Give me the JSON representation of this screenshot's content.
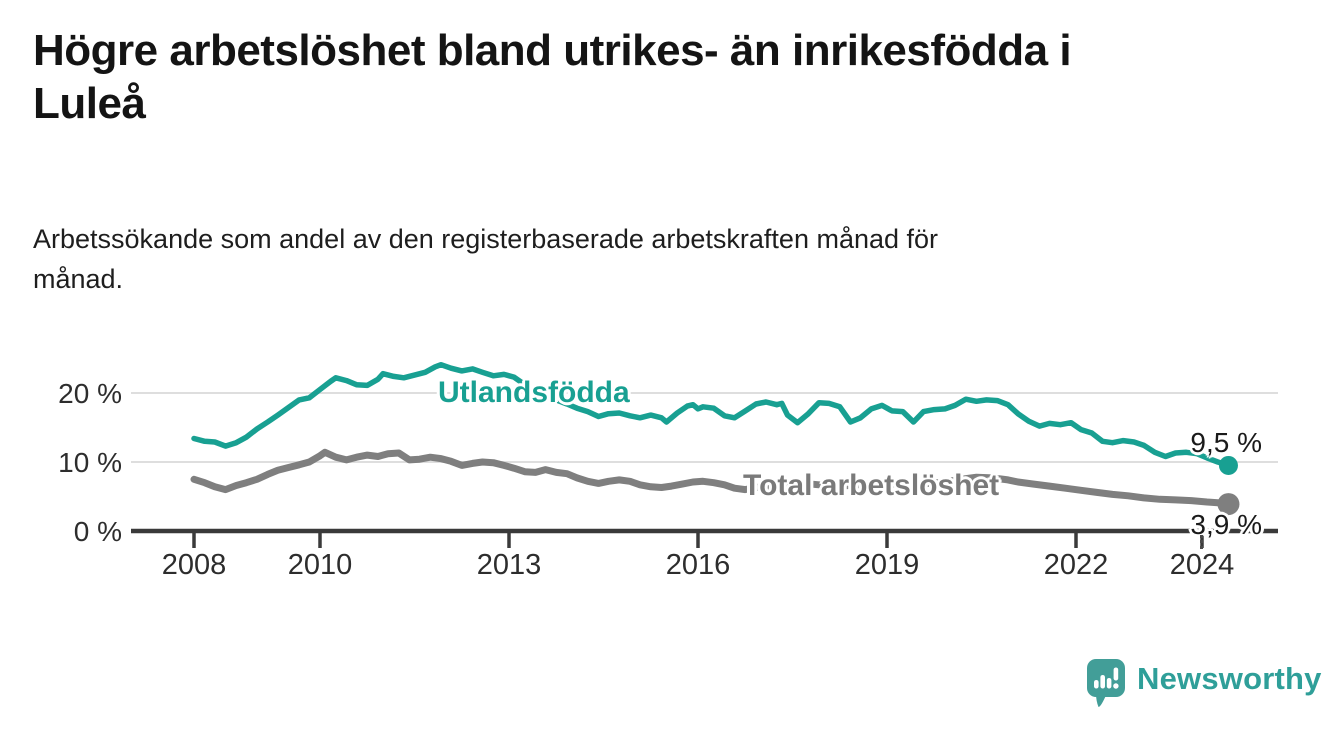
{
  "header": {
    "title": "Högre arbetslöshet bland utrikes- än inrikesfödda i Luleå",
    "title_lines": [
      "Högre arbetslöshet bland utrikes- än inrikesfödda i",
      "Luleå"
    ],
    "subtitle": "Arbetssökande som andel av den registerbaserade arbetskraften månad för månad.",
    "subtitle_lines": [
      "Arbetssökande som andel av den registerbaserade arbetskraften månad för",
      "månad."
    ]
  },
  "footer": {
    "brand": "Newsworthy",
    "brand_color": "#2f9f99"
  },
  "chart_data": {
    "type": "line",
    "title": "Högre arbetslöshet bland utrikes- än inrikesfödda i Luleå",
    "subtitle": "Arbetssökande som andel av den registerbaserade arbetskraften månad för månad.",
    "xlabel": "",
    "ylabel": "",
    "x_range": [
      2007.9,
      2025.2
    ],
    "ylim": [
      0,
      25
    ],
    "grid": "horizontal",
    "legend_position": "inline-labels",
    "x_ticks": [
      {
        "value": 2008,
        "label": "2008"
      },
      {
        "value": 2010,
        "label": "2010"
      },
      {
        "value": 2013,
        "label": "2013"
      },
      {
        "value": 2016,
        "label": "2016"
      },
      {
        "value": 2019,
        "label": "2019"
      },
      {
        "value": 2022,
        "label": "2022"
      },
      {
        "value": 2024,
        "label": "2024"
      }
    ],
    "y_ticks": [
      {
        "value": 0,
        "label": "0 %"
      },
      {
        "value": 10,
        "label": "10 %"
      },
      {
        "value": 20,
        "label": "20 %"
      }
    ],
    "axis_color": "#3a3a3a",
    "gridline_color": "#dedede",
    "tick_label_color": "#2d2d2d",
    "series": [
      {
        "label": "Utlandsfödda",
        "color": "#18a092",
        "stroke_width": 5.5,
        "dot_r": 9.5,
        "end_label": "9,5 %",
        "end_value": 9.5,
        "points": [
          [
            2008.0,
            13.4
          ],
          [
            2008.17,
            13.0
          ],
          [
            2008.33,
            12.9
          ],
          [
            2008.5,
            12.3
          ],
          [
            2008.67,
            12.8
          ],
          [
            2008.83,
            13.6
          ],
          [
            2009.0,
            14.8
          ],
          [
            2009.17,
            15.8
          ],
          [
            2009.33,
            16.8
          ],
          [
            2009.5,
            17.9
          ],
          [
            2009.67,
            19.0
          ],
          [
            2009.83,
            19.3
          ],
          [
            2010.0,
            20.5
          ],
          [
            2010.17,
            21.7
          ],
          [
            2010.25,
            22.2
          ],
          [
            2010.42,
            21.8
          ],
          [
            2010.58,
            21.2
          ],
          [
            2010.75,
            21.1
          ],
          [
            2010.92,
            22.0
          ],
          [
            2011.0,
            22.8
          ],
          [
            2011.17,
            22.4
          ],
          [
            2011.33,
            22.2
          ],
          [
            2011.5,
            22.6
          ],
          [
            2011.67,
            23.0
          ],
          [
            2011.83,
            23.8
          ],
          [
            2011.92,
            24.1
          ],
          [
            2012.08,
            23.6
          ],
          [
            2012.25,
            23.2
          ],
          [
            2012.42,
            23.5
          ],
          [
            2012.58,
            23.0
          ],
          [
            2012.75,
            22.5
          ],
          [
            2012.92,
            22.7
          ],
          [
            2013.08,
            22.3
          ],
          [
            2013.25,
            21.2
          ],
          [
            2013.42,
            20.2
          ],
          [
            2013.58,
            19.4
          ],
          [
            2013.75,
            19.0
          ],
          [
            2013.92,
            18.4
          ],
          [
            2014.08,
            17.8
          ],
          [
            2014.25,
            17.3
          ],
          [
            2014.42,
            16.6
          ],
          [
            2014.58,
            17.0
          ],
          [
            2014.75,
            17.1
          ],
          [
            2014.92,
            16.7
          ],
          [
            2015.08,
            16.4
          ],
          [
            2015.25,
            16.8
          ],
          [
            2015.42,
            16.4
          ],
          [
            2015.5,
            15.8
          ],
          [
            2015.67,
            17.1
          ],
          [
            2015.83,
            18.1
          ],
          [
            2015.92,
            18.3
          ],
          [
            2016.0,
            17.7
          ],
          [
            2016.08,
            18.0
          ],
          [
            2016.25,
            17.8
          ],
          [
            2016.42,
            16.7
          ],
          [
            2016.58,
            16.4
          ],
          [
            2016.75,
            17.4
          ],
          [
            2016.92,
            18.4
          ],
          [
            2017.08,
            18.7
          ],
          [
            2017.25,
            18.3
          ],
          [
            2017.33,
            18.5
          ],
          [
            2017.42,
            16.8
          ],
          [
            2017.58,
            15.7
          ],
          [
            2017.75,
            17.0
          ],
          [
            2017.92,
            18.6
          ],
          [
            2018.08,
            18.5
          ],
          [
            2018.25,
            18.0
          ],
          [
            2018.42,
            15.8
          ],
          [
            2018.58,
            16.4
          ],
          [
            2018.75,
            17.7
          ],
          [
            2018.92,
            18.2
          ],
          [
            2019.08,
            17.4
          ],
          [
            2019.25,
            17.3
          ],
          [
            2019.42,
            15.8
          ],
          [
            2019.58,
            17.3
          ],
          [
            2019.75,
            17.6
          ],
          [
            2019.92,
            17.7
          ],
          [
            2020.08,
            18.2
          ],
          [
            2020.25,
            19.1
          ],
          [
            2020.42,
            18.8
          ],
          [
            2020.58,
            19.0
          ],
          [
            2020.75,
            18.9
          ],
          [
            2020.92,
            18.3
          ],
          [
            2021.08,
            17.0
          ],
          [
            2021.25,
            15.9
          ],
          [
            2021.42,
            15.2
          ],
          [
            2021.58,
            15.6
          ],
          [
            2021.75,
            15.4
          ],
          [
            2021.92,
            15.7
          ],
          [
            2022.08,
            14.7
          ],
          [
            2022.25,
            14.2
          ],
          [
            2022.42,
            13.0
          ],
          [
            2022.58,
            12.8
          ],
          [
            2022.75,
            13.1
          ],
          [
            2022.92,
            12.9
          ],
          [
            2023.08,
            12.4
          ],
          [
            2023.25,
            11.4
          ],
          [
            2023.42,
            10.8
          ],
          [
            2023.58,
            11.3
          ],
          [
            2023.75,
            11.4
          ],
          [
            2023.92,
            11.2
          ],
          [
            2024.08,
            10.6
          ],
          [
            2024.25,
            10.0
          ],
          [
            2024.42,
            9.5
          ]
        ]
      },
      {
        "label": "Total arbetslöshet",
        "color": "#7f7f7f",
        "stroke_width": 7,
        "dot_r": 11,
        "end_label": "3,9 %",
        "end_value": 3.9,
        "points": [
          [
            2008.0,
            7.5
          ],
          [
            2008.17,
            7.0
          ],
          [
            2008.33,
            6.4
          ],
          [
            2008.5,
            6.0
          ],
          [
            2008.67,
            6.6
          ],
          [
            2008.83,
            7.0
          ],
          [
            2009.0,
            7.5
          ],
          [
            2009.17,
            8.2
          ],
          [
            2009.33,
            8.8
          ],
          [
            2009.5,
            9.2
          ],
          [
            2009.67,
            9.6
          ],
          [
            2009.83,
            10.0
          ],
          [
            2010.0,
            10.9
          ],
          [
            2010.08,
            11.4
          ],
          [
            2010.25,
            10.7
          ],
          [
            2010.42,
            10.3
          ],
          [
            2010.58,
            10.7
          ],
          [
            2010.75,
            11.0
          ],
          [
            2010.92,
            10.8
          ],
          [
            2011.08,
            11.2
          ],
          [
            2011.25,
            11.3
          ],
          [
            2011.42,
            10.3
          ],
          [
            2011.58,
            10.4
          ],
          [
            2011.75,
            10.7
          ],
          [
            2011.92,
            10.5
          ],
          [
            2012.08,
            10.1
          ],
          [
            2012.25,
            9.5
          ],
          [
            2012.42,
            9.8
          ],
          [
            2012.58,
            10.0
          ],
          [
            2012.75,
            9.9
          ],
          [
            2012.92,
            9.5
          ],
          [
            2013.08,
            9.1
          ],
          [
            2013.25,
            8.6
          ],
          [
            2013.42,
            8.5
          ],
          [
            2013.58,
            8.9
          ],
          [
            2013.75,
            8.5
          ],
          [
            2013.92,
            8.3
          ],
          [
            2014.08,
            7.7
          ],
          [
            2014.25,
            7.2
          ],
          [
            2014.42,
            6.9
          ],
          [
            2014.58,
            7.2
          ],
          [
            2014.75,
            7.4
          ],
          [
            2014.92,
            7.2
          ],
          [
            2015.08,
            6.7
          ],
          [
            2015.25,
            6.4
          ],
          [
            2015.42,
            6.3
          ],
          [
            2015.58,
            6.5
          ],
          [
            2015.75,
            6.8
          ],
          [
            2015.92,
            7.1
          ],
          [
            2016.08,
            7.2
          ],
          [
            2016.25,
            7.0
          ],
          [
            2016.42,
            6.7
          ],
          [
            2016.58,
            6.2
          ],
          [
            2016.75,
            6.0
          ],
          [
            2016.92,
            6.3
          ],
          [
            2017.17,
            6.5
          ],
          [
            2017.42,
            6.8
          ],
          [
            2017.67,
            6.9
          ],
          [
            2017.92,
            6.7
          ],
          [
            2018.17,
            6.5
          ],
          [
            2018.42,
            6.6
          ],
          [
            2018.67,
            6.8
          ],
          [
            2018.92,
            6.9
          ],
          [
            2019.17,
            6.8
          ],
          [
            2019.42,
            6.7
          ],
          [
            2019.67,
            6.9
          ],
          [
            2019.92,
            7.1
          ],
          [
            2020.17,
            7.5
          ],
          [
            2020.42,
            7.8
          ],
          [
            2020.67,
            7.7
          ],
          [
            2020.92,
            7.4
          ],
          [
            2021.08,
            7.1
          ],
          [
            2021.33,
            6.8
          ],
          [
            2021.58,
            6.5
          ],
          [
            2021.83,
            6.2
          ],
          [
            2022.08,
            5.9
          ],
          [
            2022.33,
            5.6
          ],
          [
            2022.58,
            5.3
          ],
          [
            2022.83,
            5.1
          ],
          [
            2023.08,
            4.8
          ],
          [
            2023.33,
            4.6
          ],
          [
            2023.58,
            4.5
          ],
          [
            2023.83,
            4.4
          ],
          [
            2024.08,
            4.2
          ],
          [
            2024.25,
            4.1
          ],
          [
            2024.42,
            3.9
          ]
        ]
      }
    ]
  }
}
